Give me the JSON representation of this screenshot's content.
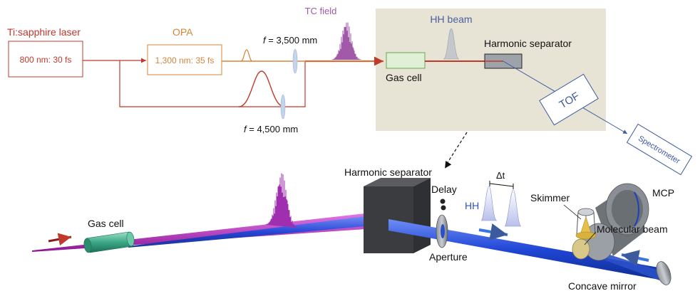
{
  "schematic": {
    "laser_label": "Ti:sapphire laser",
    "laser_box": "800 nm: 30 fs",
    "opa_label": "OPA",
    "opa_box": "1,300 nm: 35 fs",
    "tc_field": "TC field",
    "lens_upper": {
      "prefix": "f",
      "value": " = 3,500 mm"
    },
    "lens_lower": {
      "prefix": "f",
      "value": " = 4,500 mm"
    },
    "hh_beam": "HH beam",
    "gas_cell": "Gas cell",
    "harmonic_separator": "Harmonic separator",
    "tof": "TOF",
    "spectrometer": "Spectrometer"
  },
  "rendering": {
    "harmonic_separator": "Harmonic separator",
    "delay": "Delay",
    "delta_t": "Δt",
    "hh": "HH",
    "skimmer": "Skimmer",
    "mcp": "MCP",
    "molecular_beam": "Molecular beam",
    "gas_cell": "Gas cell",
    "aperture": "Aperture",
    "concave_mirror": "Concave mirror"
  },
  "colors": {
    "laser_red": "#c0392b",
    "opa_orange": "#d4853a",
    "tc_purple": "#a05aa8",
    "hh_blue": "#4a5f9a",
    "inset_bg": "#e7e4d6",
    "beam_blue": "#1f4fd0",
    "beam_magenta": "#b11fb8"
  }
}
